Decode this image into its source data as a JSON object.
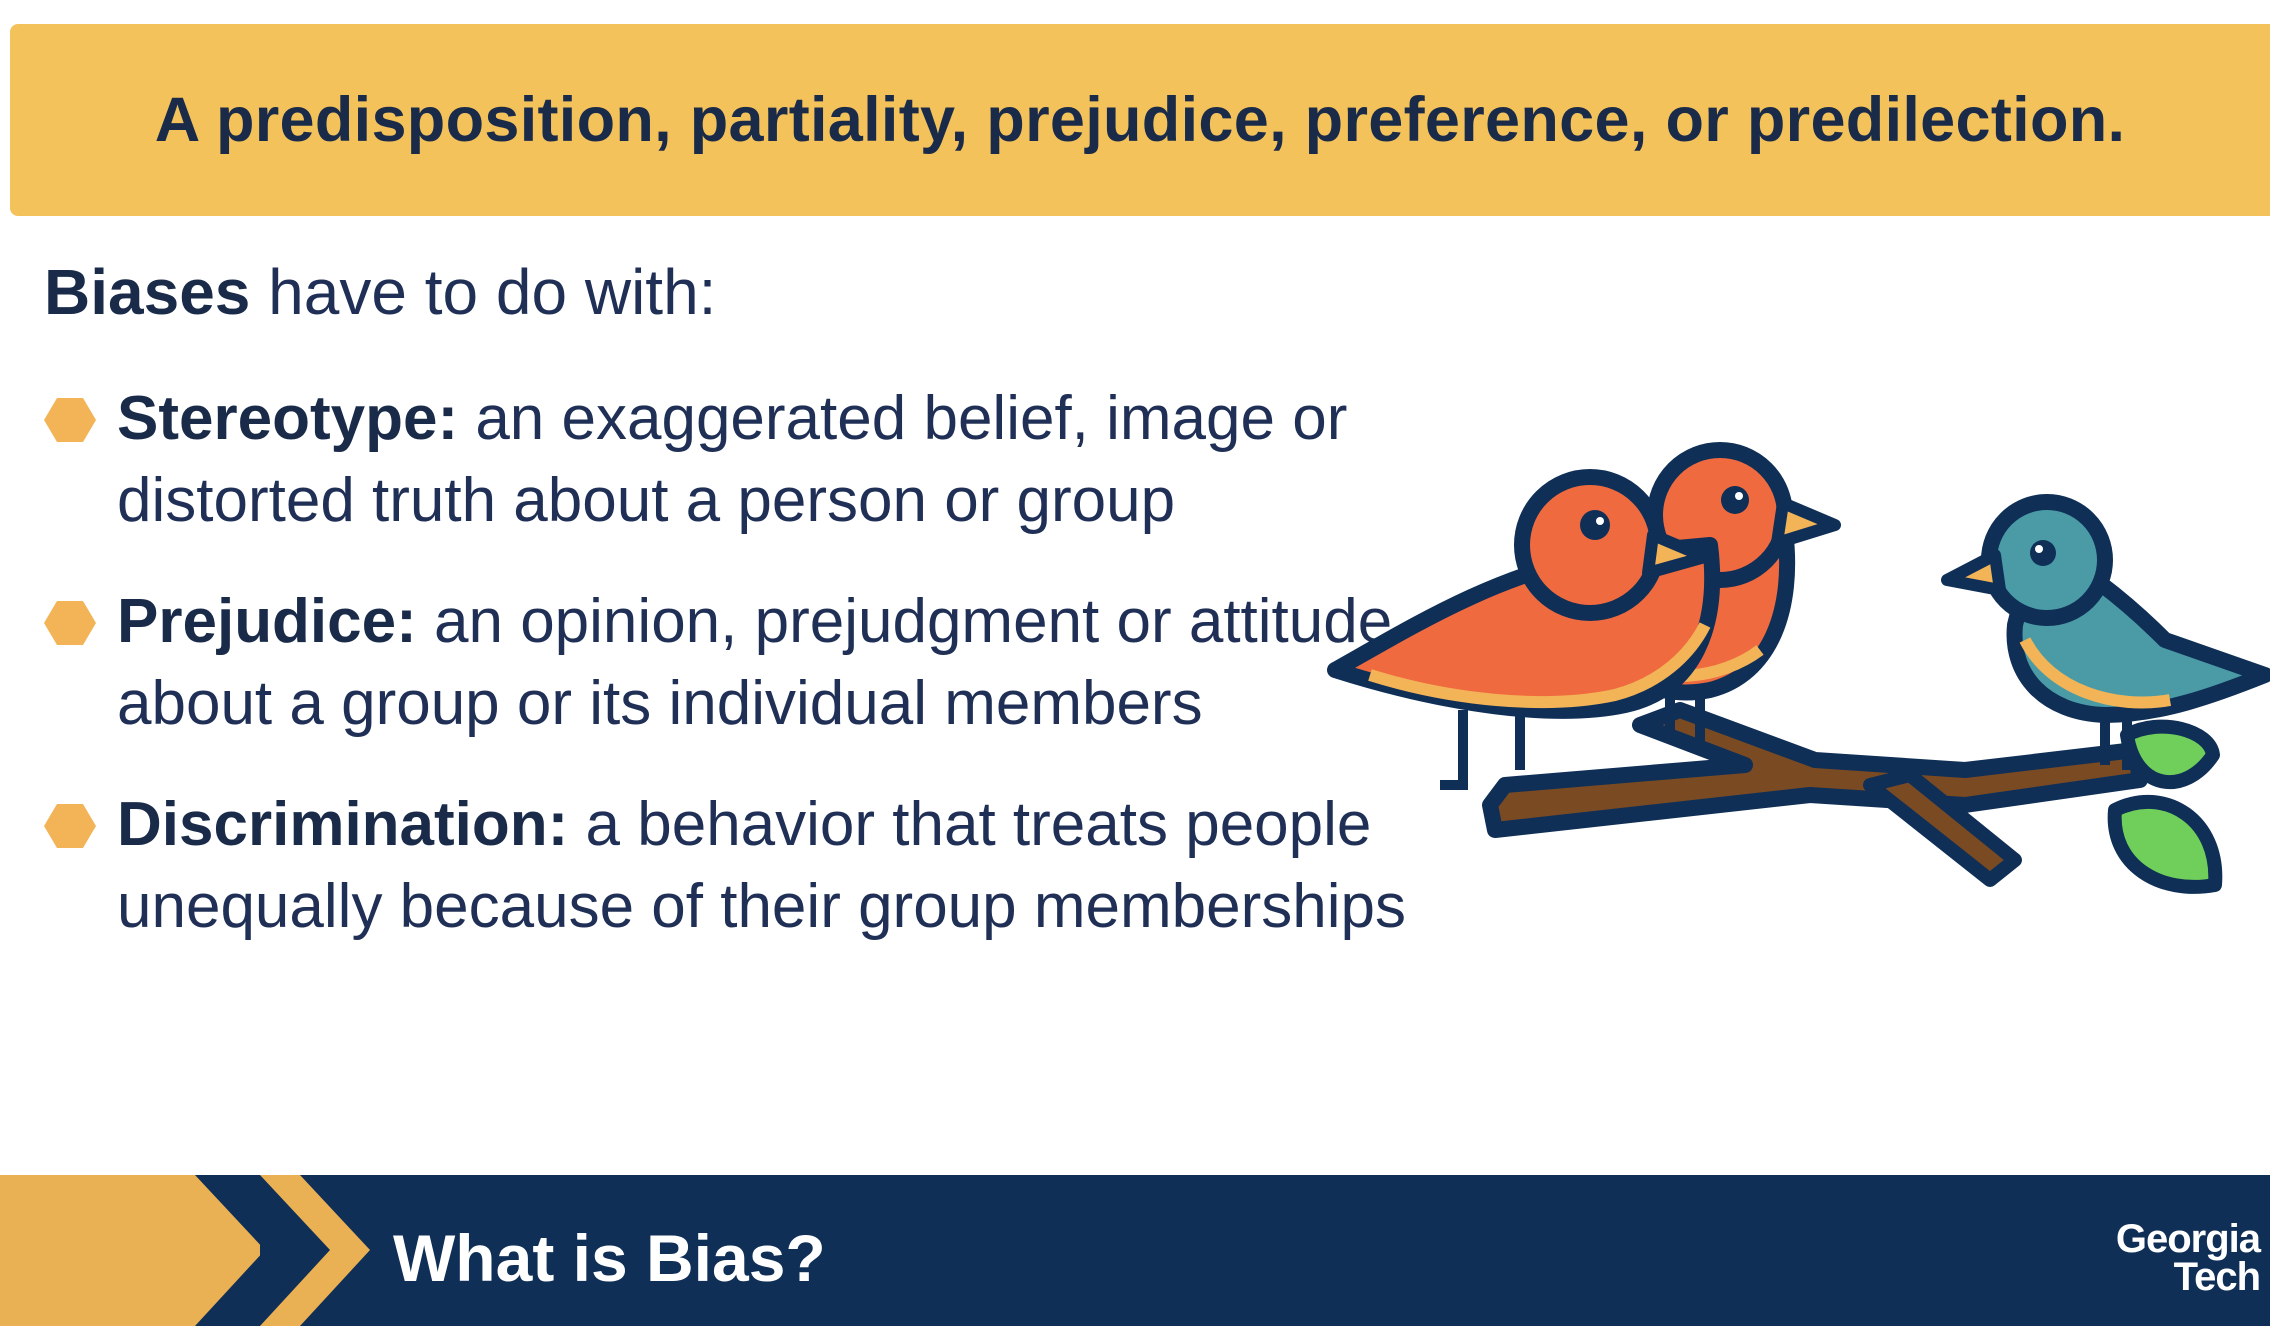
{
  "banner": {
    "text": "A predisposition, partiality, prejudice, preference, or predilection."
  },
  "intro": {
    "bold": "Biases",
    "rest": " have to do with:"
  },
  "bullets": [
    {
      "term": "Stereotype:",
      "definition": " an exaggerated belief, image or distorted truth about a person or group"
    },
    {
      "term": "Prejudice:",
      "definition": " an opinion, prejudgment or attitude about a group or its individual members"
    },
    {
      "term": "Discrimination:",
      "definition": " a behavior that treats people unequally because of their group memberships"
    }
  ],
  "footer": {
    "title": "What is Bias?",
    "logo_line1": "Georgia",
    "logo_line2": "Tech"
  },
  "colors": {
    "banner": "#f4c25a",
    "text": "#1f2f55",
    "footer": "#0f2f57",
    "accent": "#eab054",
    "bird_red": "#f06a3f",
    "bird_blue": "#4a9ba6",
    "leaf": "#6fcf5a",
    "branch": "#7a4a22"
  }
}
